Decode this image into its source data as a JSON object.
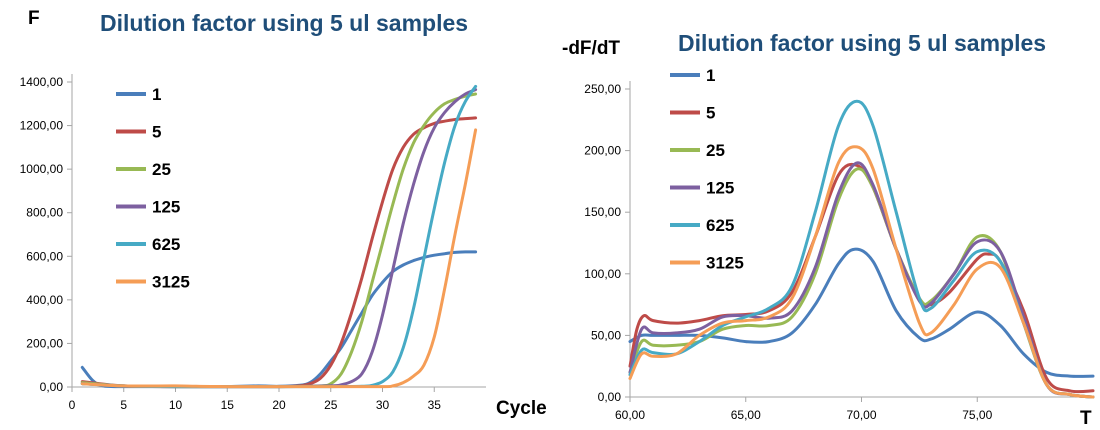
{
  "chart_data": [
    {
      "type": "line",
      "title": "Dilution factor using 5 ul samples",
      "ylabel": "F",
      "xlabel": "Cycle",
      "xlim": [
        0,
        40
      ],
      "ylim": [
        0,
        1400
      ],
      "xticks": [
        "0",
        "5",
        "10",
        "15",
        "20",
        "25",
        "30",
        "35"
      ],
      "yticks": [
        "0,00",
        "200,00",
        "400,00",
        "600,00",
        "800,00",
        "1000,00",
        "1200,00",
        "1400,00"
      ],
      "legend_position": "top-left",
      "series": [
        {
          "name": "1",
          "color": "#4a7ebb",
          "x": [
            1,
            2,
            3,
            5,
            10,
            15,
            18,
            20,
            22,
            23,
            24,
            25,
            26,
            27,
            28,
            29,
            30,
            31,
            32,
            33,
            34,
            35,
            36,
            37,
            38,
            39
          ],
          "y": [
            90,
            30,
            5,
            2,
            2,
            2,
            5,
            3,
            8,
            20,
            60,
            120,
            180,
            260,
            340,
            420,
            480,
            530,
            560,
            580,
            595,
            605,
            612,
            618,
            620,
            620
          ]
        },
        {
          "name": "5",
          "color": "#be4b48",
          "x": [
            1,
            5,
            10,
            15,
            20,
            22,
            23,
            24,
            25,
            26,
            27,
            28,
            29,
            30,
            31,
            32,
            33,
            34,
            35,
            36,
            37,
            38,
            39
          ],
          "y": [
            25,
            5,
            2,
            2,
            2,
            5,
            15,
            40,
            100,
            200,
            340,
            500,
            680,
            850,
            1000,
            1100,
            1160,
            1190,
            1210,
            1220,
            1228,
            1232,
            1235
          ]
        },
        {
          "name": "25",
          "color": "#98b954",
          "x": [
            1,
            5,
            10,
            15,
            20,
            24,
            25,
            26,
            27,
            28,
            29,
            30,
            31,
            32,
            33,
            34,
            35,
            36,
            37,
            38,
            39
          ],
          "y": [
            20,
            5,
            2,
            2,
            2,
            5,
            15,
            60,
            160,
            300,
            480,
            660,
            840,
            1000,
            1120,
            1200,
            1260,
            1300,
            1320,
            1335,
            1345
          ]
        },
        {
          "name": "125",
          "color": "#7d60a0",
          "x": [
            1,
            5,
            10,
            15,
            20,
            25,
            26,
            27,
            28,
            29,
            30,
            31,
            32,
            33,
            34,
            35,
            36,
            37,
            38,
            39
          ],
          "y": [
            15,
            5,
            2,
            2,
            2,
            5,
            10,
            25,
            60,
            160,
            330,
            540,
            750,
            930,
            1080,
            1190,
            1260,
            1310,
            1345,
            1365
          ]
        },
        {
          "name": "625",
          "color": "#46aac5",
          "x": [
            1,
            5,
            10,
            15,
            20,
            25,
            28,
            29,
            30,
            31,
            32,
            33,
            34,
            35,
            36,
            37,
            38,
            39
          ],
          "y": [
            15,
            5,
            2,
            2,
            2,
            2,
            3,
            8,
            25,
            70,
            180,
            360,
            590,
            820,
            1030,
            1200,
            1310,
            1380
          ]
        },
        {
          "name": "3125",
          "color": "#f59d56",
          "x": [
            1,
            5,
            10,
            12,
            15,
            20,
            25,
            30,
            31,
            32,
            33,
            34,
            35,
            36,
            37,
            38,
            39
          ],
          "y": [
            15,
            5,
            5,
            3,
            2,
            2,
            2,
            2,
            5,
            20,
            50,
            100,
            230,
            450,
            700,
            930,
            1180
          ]
        }
      ]
    },
    {
      "type": "line",
      "title": "Dilution factor using 5 ul samples",
      "ylabel": "-dF/dT",
      "xlabel": "T",
      "xlim": [
        60,
        80
      ],
      "ylim": [
        0,
        250
      ],
      "xticks": [
        "60,00",
        "65,00",
        "70,00",
        "75,00"
      ],
      "yticks": [
        "0,00",
        "50,00",
        "100,00",
        "150,00",
        "200,00",
        "250,00"
      ],
      "legend_position": "top-left",
      "series": [
        {
          "name": "1",
          "color": "#4a7ebb",
          "x": [
            60,
            60.5,
            61,
            62,
            63,
            64,
            65,
            66,
            67,
            68,
            69,
            69.7,
            70.5,
            71.5,
            72.5,
            73,
            73.8,
            75,
            76,
            77,
            78,
            79,
            80
          ],
          "y": [
            45,
            50,
            50,
            50,
            50,
            48,
            45,
            45,
            52,
            75,
            108,
            120,
            110,
            70,
            48,
            47,
            55,
            69,
            58,
            35,
            20,
            17,
            17
          ]
        },
        {
          "name": "5",
          "color": "#be4b48",
          "x": [
            60,
            60.3,
            60.6,
            61,
            62,
            63,
            64,
            65,
            66,
            67,
            68,
            69,
            69.8,
            70.5,
            71.5,
            72.5,
            73,
            73.8,
            75,
            75.5,
            76,
            77,
            78,
            79,
            80
          ],
          "y": [
            25,
            55,
            66,
            62,
            60,
            62,
            66,
            67,
            70,
            85,
            130,
            180,
            188,
            170,
            120,
            80,
            75,
            85,
            112,
            116,
            110,
            70,
            15,
            5,
            5
          ]
        },
        {
          "name": "25",
          "color": "#98b954",
          "x": [
            60,
            60.5,
            61,
            62,
            63,
            64,
            65,
            66,
            67,
            68,
            69,
            69.8,
            70.5,
            71.5,
            72.5,
            73,
            74,
            75,
            76,
            77,
            78,
            79,
            80
          ],
          "y": [
            20,
            45,
            42,
            42,
            45,
            55,
            58,
            58,
            65,
            100,
            160,
            185,
            170,
            120,
            80,
            78,
            100,
            130,
            118,
            60,
            10,
            2,
            0
          ]
        },
        {
          "name": "125",
          "color": "#7d60a0",
          "x": [
            60,
            60.5,
            61,
            62,
            63,
            64,
            65,
            66,
            67,
            68,
            69,
            69.8,
            70.5,
            71.5,
            72.5,
            73,
            74,
            75,
            76,
            77,
            78,
            79,
            80
          ],
          "y": [
            20,
            55,
            52,
            52,
            55,
            65,
            66,
            64,
            70,
            105,
            165,
            190,
            172,
            120,
            78,
            76,
            100,
            126,
            118,
            65,
            10,
            2,
            0
          ]
        },
        {
          "name": "625",
          "color": "#46aac5",
          "x": [
            60,
            60.5,
            61,
            62,
            63,
            64,
            65,
            66,
            67,
            68,
            69,
            69.8,
            70.5,
            71.5,
            72.5,
            73,
            74,
            75,
            76,
            77,
            78,
            79,
            80
          ],
          "y": [
            18,
            38,
            36,
            35,
            45,
            58,
            65,
            72,
            90,
            150,
            220,
            240,
            220,
            150,
            80,
            72,
            95,
            118,
            110,
            60,
            10,
            2,
            0
          ]
        },
        {
          "name": "3125",
          "color": "#f59d56",
          "x": [
            60,
            60.5,
            61,
            62,
            63,
            64,
            65,
            66,
            67,
            68,
            69,
            69.8,
            70.5,
            71.5,
            72.5,
            73,
            74,
            75,
            76,
            77,
            78,
            79,
            80
          ],
          "y": [
            15,
            35,
            33,
            35,
            50,
            60,
            62,
            65,
            80,
            130,
            190,
            203,
            185,
            120,
            60,
            52,
            75,
            104,
            105,
            60,
            10,
            2,
            0
          ]
        }
      ]
    }
  ]
}
